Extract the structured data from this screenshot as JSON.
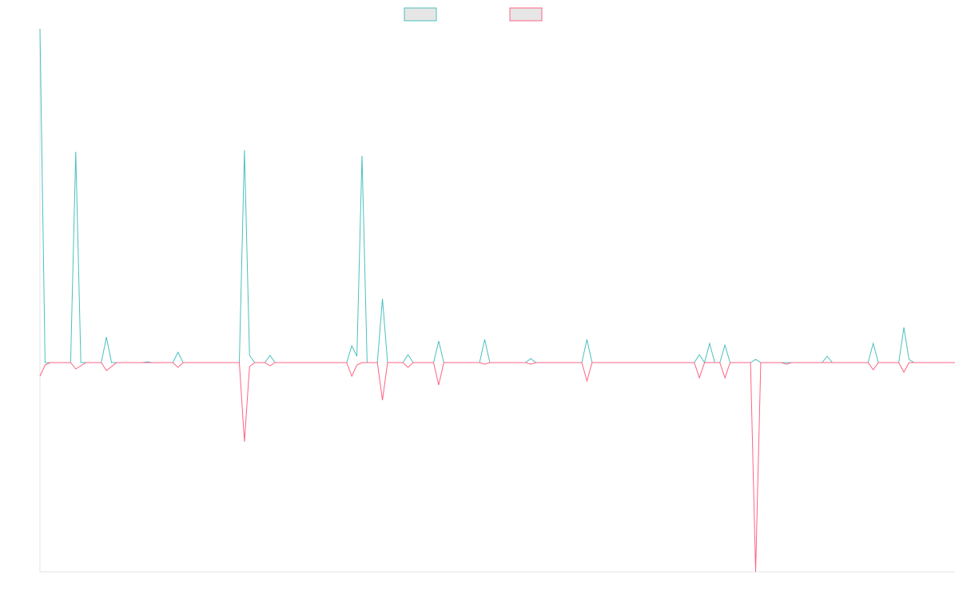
{
  "chart_data": {
    "type": "line",
    "ylim": [
      -262,
      418
    ],
    "series": [
      {
        "color": "#4bc0c0",
        "values": [
          418,
          0,
          0,
          0,
          0,
          0,
          0,
          264,
          0,
          0,
          0,
          0,
          0,
          32,
          0,
          0,
          0,
          0,
          0,
          0,
          0,
          1,
          0,
          0,
          0,
          0,
          0,
          13,
          0,
          0,
          0,
          0,
          0,
          0,
          0,
          0,
          0,
          0,
          0,
          0,
          266,
          9,
          0,
          0,
          0,
          9,
          0,
          0,
          0,
          0,
          0,
          0,
          0,
          0,
          0,
          0,
          0,
          0,
          0,
          0,
          0,
          21,
          8,
          259,
          0,
          0,
          0,
          80,
          0,
          0,
          0,
          0,
          10,
          0,
          0,
          0,
          0,
          0,
          27,
          0,
          0,
          0,
          0,
          0,
          0,
          0,
          0,
          29,
          0,
          0,
          0,
          0,
          0,
          0,
          0,
          0,
          5,
          0,
          0,
          0,
          0,
          0,
          0,
          0,
          0,
          0,
          0,
          29,
          0,
          0,
          0,
          0,
          0,
          0,
          0,
          0,
          0,
          0,
          0,
          0,
          0,
          0,
          0,
          0,
          0,
          0,
          0,
          0,
          0,
          10,
          0,
          24,
          0,
          0,
          22,
          0,
          0,
          0,
          0,
          0,
          4,
          0,
          0,
          0,
          0,
          0,
          0,
          0,
          0,
          0,
          0,
          0,
          0,
          0,
          8,
          0,
          0,
          0,
          0,
          0,
          0,
          0,
          0,
          24,
          0,
          0,
          0,
          0,
          0,
          44,
          4,
          0,
          0,
          0,
          0,
          0,
          0,
          0,
          0,
          0
        ]
      },
      {
        "color": "#ff6384",
        "values": [
          -17,
          -3,
          0,
          0,
          0,
          0,
          0,
          -8,
          -4,
          0,
          0,
          0,
          0,
          -10,
          -5,
          0,
          0,
          0,
          0,
          0,
          0,
          0,
          0,
          0,
          0,
          0,
          0,
          -6,
          0,
          0,
          0,
          0,
          0,
          0,
          0,
          0,
          0,
          0,
          0,
          0,
          -99,
          -5,
          0,
          0,
          0,
          -4,
          0,
          0,
          0,
          0,
          0,
          0,
          0,
          0,
          0,
          0,
          0,
          0,
          0,
          0,
          0,
          -17,
          -3,
          0,
          0,
          0,
          0,
          -47,
          0,
          0,
          0,
          0,
          -6,
          0,
          0,
          0,
          0,
          0,
          -28,
          0,
          0,
          0,
          0,
          0,
          0,
          0,
          0,
          -2,
          0,
          0,
          0,
          0,
          0,
          0,
          0,
          0,
          -2,
          0,
          0,
          0,
          0,
          0,
          0,
          0,
          0,
          0,
          0,
          -23,
          0,
          0,
          0,
          0,
          0,
          0,
          0,
          0,
          0,
          0,
          0,
          0,
          0,
          0,
          0,
          0,
          0,
          0,
          0,
          0,
          0,
          -19,
          0,
          0,
          0,
          0,
          -19,
          0,
          0,
          0,
          0,
          0,
          -262,
          0,
          0,
          0,
          0,
          0,
          -2,
          0,
          0,
          0,
          0,
          0,
          0,
          0,
          0,
          0,
          0,
          0,
          0,
          0,
          0,
          0,
          0,
          -9,
          0,
          0,
          0,
          0,
          0,
          -12,
          0,
          0,
          0,
          0,
          0,
          0,
          0,
          0,
          0,
          0
        ]
      }
    ]
  }
}
